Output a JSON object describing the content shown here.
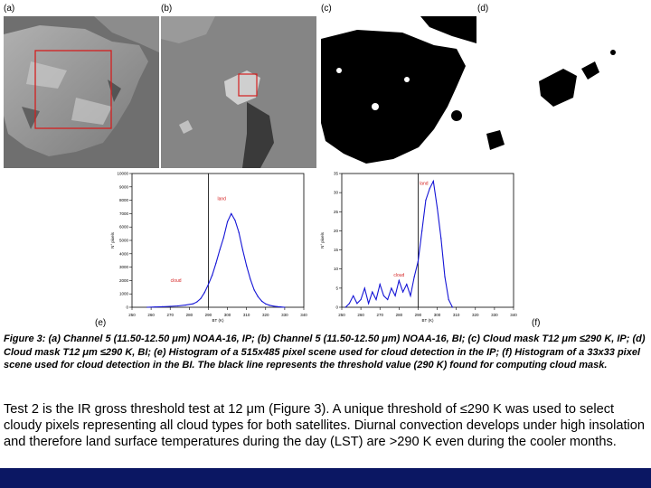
{
  "panel_labels": {
    "a": "(a)",
    "b": "(b)",
    "c": "(c)",
    "d": "(d)",
    "e": "(e)",
    "f": "(f)"
  },
  "chart_data": [
    {
      "type": "line",
      "panel": "(e)",
      "xlabel": "BT (K)",
      "ylabel": "N° pixels",
      "xlim": [
        250,
        340
      ],
      "ylim": [
        0,
        10000
      ],
      "x_ticks": [
        250,
        260,
        270,
        280,
        290,
        300,
        310,
        320,
        330,
        340
      ],
      "y_ticks": [
        0,
        1000,
        2000,
        3000,
        4000,
        5000,
        6000,
        7000,
        8000,
        9000,
        10000
      ],
      "threshold": 290,
      "annotations": [
        {
          "text": "land",
          "x": 297,
          "y": 8000
        },
        {
          "text": "cloud",
          "x": 273,
          "y": 1900
        }
      ],
      "series": [
        {
          "x": [
            258,
            262,
            266,
            270,
            274,
            278,
            282,
            284,
            286,
            288,
            290,
            292,
            294,
            296,
            298,
            300,
            302,
            304,
            306,
            308,
            310,
            312,
            314,
            316,
            318,
            320,
            322,
            324,
            326,
            328,
            330
          ],
          "values": [
            0,
            20,
            40,
            70,
            100,
            160,
            260,
            400,
            650,
            1100,
            1700,
            2400,
            3300,
            4300,
            5200,
            6400,
            7000,
            6500,
            5600,
            4300,
            3100,
            2100,
            1300,
            800,
            450,
            250,
            150,
            90,
            50,
            20,
            0
          ]
        }
      ]
    },
    {
      "type": "line",
      "panel": "(f)",
      "xlabel": "BT (K)",
      "ylabel": "N° pixels",
      "xlim": [
        250,
        340
      ],
      "ylim": [
        0,
        35
      ],
      "x_ticks": [
        250,
        260,
        270,
        280,
        290,
        300,
        310,
        320,
        330,
        340
      ],
      "y_ticks": [
        0,
        5,
        10,
        15,
        20,
        25,
        30,
        35
      ],
      "threshold": 290,
      "annotations": [
        {
          "text": "land",
          "x": 293,
          "y": 32
        },
        {
          "text": "cloud",
          "x": 280,
          "y": 8
        }
      ],
      "series": [
        {
          "x": [
            252,
            254,
            256,
            258,
            260,
            262,
            264,
            266,
            268,
            270,
            272,
            274,
            276,
            278,
            280,
            282,
            284,
            286,
            288,
            290,
            292,
            294,
            296,
            298,
            300,
            302,
            304,
            306,
            308
          ],
          "values": [
            0,
            1,
            3,
            1,
            2,
            5,
            1,
            4,
            2,
            6,
            3,
            2,
            5,
            3,
            7,
            4,
            6,
            3,
            8,
            12,
            20,
            28,
            31,
            33,
            26,
            18,
            8,
            2,
            0
          ]
        }
      ]
    }
  ],
  "caption": "Figure 3: (a) Channel 5 (11.50-12.50 μm) NOAA-16, IP; (b) Channel 5 (11.50-12.50 μm) NOAA-16, BI; (c) Cloud mask T12 μm ≤290 K, IP; (d) Cloud mask T12 μm ≤290 K, BI; (e) Histogram of a 515x485 pixel scene used for cloud detection in the IP; (f) Histogram of a 33x33 pixel scene used for cloud detection in the BI. The black line represents the threshold value (290 K) found for computing cloud mask.",
  "body": "Test 2 is the IR gross threshold test at 12 μm (Figure 3). A unique threshold of ≤290 K was used to select cloudy pixels representing all cloud types for both satellites. Diurnal convection develops under high insolation and therefore land surface temperatures during the day (LST) are >290 K even during the cooler months."
}
